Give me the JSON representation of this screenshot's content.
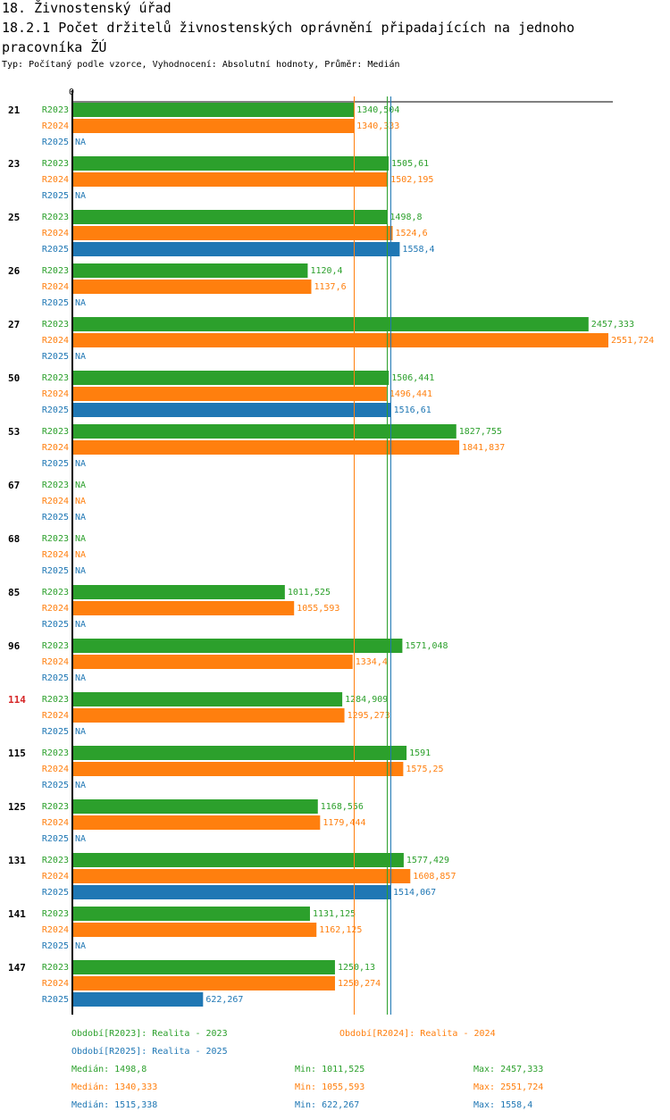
{
  "header": {
    "title": "18. Živnostenský úřad",
    "subtitle": "18.2.1 Počet držitelů živnostenských oprávnění připadajících na jednoho pracovníka ŽÚ",
    "meta": "Typ: Počítaný podle vzorce, Vyhodnocení: Absolutní hodnoty, Průměr: Medián"
  },
  "colors": {
    "R2023": "#2ca02c",
    "R2024": "#ff7f0e",
    "R2025": "#1f77b4",
    "highlight": "#d62728",
    "axis": "#000000"
  },
  "chart_data": {
    "type": "bar",
    "orientation": "horizontal",
    "axis_zero_label": "0",
    "x_max_scale": 2551.724,
    "na_label": "NA",
    "series_names": [
      "R2023",
      "R2024",
      "R2025"
    ],
    "groups": [
      {
        "label": "21",
        "highlight": false,
        "values": [
          {
            "s": "R2023",
            "v": 1340.504,
            "t": "1340,504"
          },
          {
            "s": "R2024",
            "v": 1340.333,
            "t": "1340,333"
          },
          {
            "s": "R2025",
            "v": null,
            "t": "NA"
          }
        ]
      },
      {
        "label": "23",
        "highlight": false,
        "values": [
          {
            "s": "R2023",
            "v": 1505.61,
            "t": "1505,61"
          },
          {
            "s": "R2024",
            "v": 1502.195,
            "t": "1502,195"
          },
          {
            "s": "R2025",
            "v": null,
            "t": "NA"
          }
        ]
      },
      {
        "label": "25",
        "highlight": false,
        "values": [
          {
            "s": "R2023",
            "v": 1498.8,
            "t": "1498,8"
          },
          {
            "s": "R2024",
            "v": 1524.6,
            "t": "1524,6"
          },
          {
            "s": "R2025",
            "v": 1558.4,
            "t": "1558,4"
          }
        ]
      },
      {
        "label": "26",
        "highlight": false,
        "values": [
          {
            "s": "R2023",
            "v": 1120.4,
            "t": "1120,4"
          },
          {
            "s": "R2024",
            "v": 1137.6,
            "t": "1137,6"
          },
          {
            "s": "R2025",
            "v": null,
            "t": "NA"
          }
        ]
      },
      {
        "label": "27",
        "highlight": false,
        "values": [
          {
            "s": "R2023",
            "v": 2457.333,
            "t": "2457,333"
          },
          {
            "s": "R2024",
            "v": 2551.724,
            "t": "2551,724"
          },
          {
            "s": "R2025",
            "v": null,
            "t": "NA"
          }
        ]
      },
      {
        "label": "50",
        "highlight": false,
        "values": [
          {
            "s": "R2023",
            "v": 1506.441,
            "t": "1506,441"
          },
          {
            "s": "R2024",
            "v": 1496.441,
            "t": "1496,441"
          },
          {
            "s": "R2025",
            "v": 1516.61,
            "t": "1516,61"
          }
        ]
      },
      {
        "label": "53",
        "highlight": false,
        "values": [
          {
            "s": "R2023",
            "v": 1827.755,
            "t": "1827,755"
          },
          {
            "s": "R2024",
            "v": 1841.837,
            "t": "1841,837"
          },
          {
            "s": "R2025",
            "v": null,
            "t": "NA"
          }
        ]
      },
      {
        "label": "67",
        "highlight": false,
        "values": [
          {
            "s": "R2023",
            "v": null,
            "t": "NA"
          },
          {
            "s": "R2024",
            "v": null,
            "t": "NA"
          },
          {
            "s": "R2025",
            "v": null,
            "t": "NA"
          }
        ]
      },
      {
        "label": "68",
        "highlight": false,
        "values": [
          {
            "s": "R2023",
            "v": null,
            "t": "NA"
          },
          {
            "s": "R2024",
            "v": null,
            "t": "NA"
          },
          {
            "s": "R2025",
            "v": null,
            "t": "NA"
          }
        ]
      },
      {
        "label": "85",
        "highlight": false,
        "values": [
          {
            "s": "R2023",
            "v": 1011.525,
            "t": "1011,525"
          },
          {
            "s": "R2024",
            "v": 1055.593,
            "t": "1055,593"
          },
          {
            "s": "R2025",
            "v": null,
            "t": "NA"
          }
        ]
      },
      {
        "label": "96",
        "highlight": false,
        "values": [
          {
            "s": "R2023",
            "v": 1571.048,
            "t": "1571,048"
          },
          {
            "s": "R2024",
            "v": 1334.4,
            "t": "1334,4"
          },
          {
            "s": "R2025",
            "v": null,
            "t": "NA"
          }
        ]
      },
      {
        "label": "114",
        "highlight": true,
        "values": [
          {
            "s": "R2023",
            "v": 1284.909,
            "t": "1284,909"
          },
          {
            "s": "R2024",
            "v": 1295.273,
            "t": "1295,273"
          },
          {
            "s": "R2025",
            "v": null,
            "t": "NA"
          }
        ]
      },
      {
        "label": "115",
        "highlight": false,
        "values": [
          {
            "s": "R2023",
            "v": 1591,
            "t": "1591"
          },
          {
            "s": "R2024",
            "v": 1575.25,
            "t": "1575,25"
          },
          {
            "s": "R2025",
            "v": null,
            "t": "NA"
          }
        ]
      },
      {
        "label": "125",
        "highlight": false,
        "values": [
          {
            "s": "R2023",
            "v": 1168.556,
            "t": "1168,556"
          },
          {
            "s": "R2024",
            "v": 1179.444,
            "t": "1179,444"
          },
          {
            "s": "R2025",
            "v": null,
            "t": "NA"
          }
        ]
      },
      {
        "label": "131",
        "highlight": false,
        "values": [
          {
            "s": "R2023",
            "v": 1577.429,
            "t": "1577,429"
          },
          {
            "s": "R2024",
            "v": 1608.857,
            "t": "1608,857"
          },
          {
            "s": "R2025",
            "v": 1514.067,
            "t": "1514,067"
          }
        ]
      },
      {
        "label": "141",
        "highlight": false,
        "values": [
          {
            "s": "R2023",
            "v": 1131.125,
            "t": "1131,125"
          },
          {
            "s": "R2024",
            "v": 1162.125,
            "t": "1162,125"
          },
          {
            "s": "R2025",
            "v": null,
            "t": "NA"
          }
        ]
      },
      {
        "label": "147",
        "highlight": false,
        "values": [
          {
            "s": "R2023",
            "v": 1250.13,
            "t": "1250,13"
          },
          {
            "s": "R2024",
            "v": 1250.274,
            "t": "1250,274"
          },
          {
            "s": "R2025",
            "v": 622.267,
            "t": "622,267"
          }
        ]
      }
    ],
    "medians": [
      {
        "s": "R2023",
        "v": 1498.8
      },
      {
        "s": "R2024",
        "v": 1340.333
      },
      {
        "s": "R2025",
        "v": 1515.338
      }
    ],
    "legend": {
      "periods": [
        {
          "s": "R2023",
          "text": "Období[R2023]: Realita - 2023"
        },
        {
          "s": "R2024",
          "text": "Období[R2024]: Realita - 2024"
        },
        {
          "s": "R2025",
          "text": "Období[R2025]: Realita - 2025"
        }
      ],
      "stats": [
        {
          "s": "R2023",
          "median": "Medián: 1498,8",
          "min": "Min: 1011,525",
          "max": "Max: 2457,333"
        },
        {
          "s": "R2024",
          "median": "Medián: 1340,333",
          "min": "Min: 1055,593",
          "max": "Max: 2551,724"
        },
        {
          "s": "R2025",
          "median": "Medián: 1515,338",
          "min": "Min: 622,267",
          "max": "Max: 1558,4"
        }
      ]
    }
  }
}
